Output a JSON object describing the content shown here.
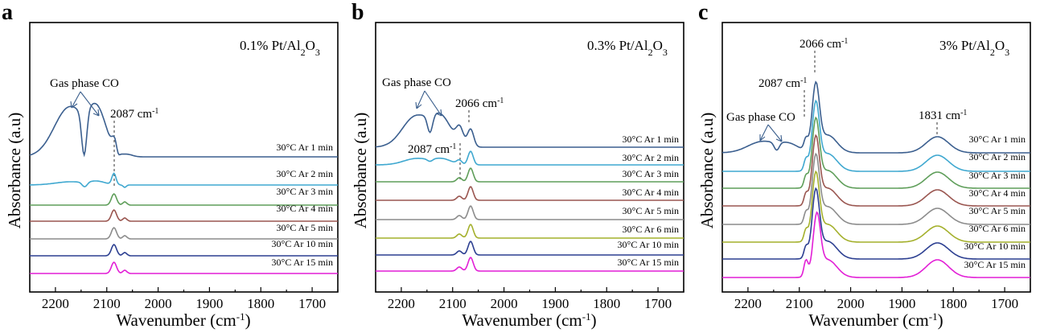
{
  "chart_data": [
    {
      "type": "line",
      "panel_letter": "a",
      "sample_parts": [
        "0.1% Pt/Al",
        "2",
        "O",
        "3"
      ],
      "xlabel": "Wavenumber (cm",
      "xlabel_sup": "-1",
      "xlabel_close": ")",
      "ylabel": "Absorbance (a.u)",
      "xlim": [
        2250,
        1650
      ],
      "x_ticks": [
        "2200",
        "2100",
        "2000",
        "1900",
        "1800",
        "1700"
      ],
      "annotations": [
        {
          "text": "Gas phase CO",
          "kind": "plain"
        },
        {
          "text": "2087 cm",
          "sup": "-1",
          "kind": "wavenumber",
          "x": 2087
        }
      ],
      "series": [
        {
          "name": "30°C Ar 1 min",
          "color": "#3b5f8f"
        },
        {
          "name": "30°C Ar 2 min",
          "color": "#3fa8d0"
        },
        {
          "name": "30°C Ar 3 min",
          "color": "#5f9e5a"
        },
        {
          "name": "30°C Ar 4 min",
          "color": "#9a5650"
        },
        {
          "name": "30°C Ar 5 min",
          "color": "#8c8c8c"
        },
        {
          "name": "30°C Ar 10 min",
          "color": "#2c3f91"
        },
        {
          "name": "30°C Ar 15 min",
          "color": "#e21fd6"
        }
      ]
    },
    {
      "type": "line",
      "panel_letter": "b",
      "sample_parts": [
        "0.3% Pt/Al",
        "2",
        "O",
        "3"
      ],
      "xlabel": "Wavenumber (cm",
      "xlabel_sup": "-1",
      "xlabel_close": ")",
      "ylabel": "Absorbance (a.u)",
      "xlim": [
        2250,
        1650
      ],
      "x_ticks": [
        "2200",
        "2100",
        "2000",
        "1900",
        "1800",
        "1700"
      ],
      "annotations": [
        {
          "text": "Gas phase CO",
          "kind": "plain"
        },
        {
          "text": "2066 cm",
          "sup": "-1",
          "kind": "wavenumber",
          "x": 2066
        },
        {
          "text": "2087 cm",
          "sup": "-1",
          "kind": "wavenumber",
          "x": 2087
        }
      ],
      "series": [
        {
          "name": "30°C Ar 1 min",
          "color": "#3b5f8f"
        },
        {
          "name": "30°C Ar 2 min",
          "color": "#3fa8d0"
        },
        {
          "name": "30°C Ar 3 min",
          "color": "#5f9e5a"
        },
        {
          "name": "30°C Ar 4 min",
          "color": "#9a5650"
        },
        {
          "name": "30°C Ar 5 min",
          "color": "#8c8c8c"
        },
        {
          "name": "30°C Ar 6 min",
          "color": "#a4b02c"
        },
        {
          "name": "30°C Ar 10 min",
          "color": "#2c3f91"
        },
        {
          "name": "30°C Ar 15 min",
          "color": "#e21fd6"
        }
      ]
    },
    {
      "type": "line",
      "panel_letter": "c",
      "sample_parts": [
        "3% Pt/Al",
        "2",
        "O",
        "3"
      ],
      "xlabel": "Wavenumber (cm",
      "xlabel_sup": "-1",
      "xlabel_close": ")",
      "ylabel": "Absorbance (a.u)",
      "xlim": [
        2250,
        1650
      ],
      "x_ticks": [
        "2200",
        "2100",
        "2000",
        "1900",
        "1800",
        "1700"
      ],
      "annotations": [
        {
          "text": "2066 cm",
          "sup": "-1",
          "kind": "wavenumber",
          "x": 2066
        },
        {
          "text": "2087 cm",
          "sup": "-1",
          "kind": "wavenumber",
          "x": 2087
        },
        {
          "text": "1831 cm",
          "sup": "-1",
          "kind": "wavenumber",
          "x": 1831
        },
        {
          "text": "Gas phase CO",
          "kind": "plain"
        }
      ],
      "series": [
        {
          "name": "30°C Ar 1 min",
          "color": "#3b5f8f"
        },
        {
          "name": "30°C Ar 2 min",
          "color": "#3fa8d0"
        },
        {
          "name": "30°C Ar 3 min",
          "color": "#5f9e5a"
        },
        {
          "name": "30°C Ar 4 min",
          "color": "#9a5650"
        },
        {
          "name": "30°C Ar 5 min",
          "color": "#8c8c8c"
        },
        {
          "name": "30°C Ar 6 min",
          "color": "#a4b02c"
        },
        {
          "name": "30°C Ar 10 min",
          "color": "#2c3f91"
        },
        {
          "name": "30°C Ar 15 min",
          "color": "#e21fd6"
        }
      ]
    }
  ]
}
